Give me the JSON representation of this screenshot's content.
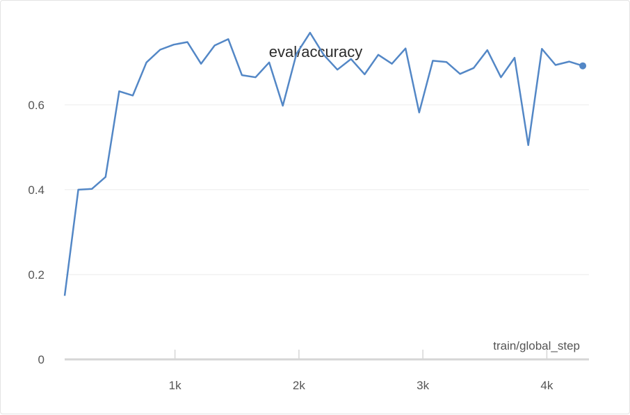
{
  "chart_data": {
    "type": "line",
    "title": "eval/accuracy",
    "xlabel": "train/global_step",
    "ylabel": "",
    "xlim": [
      110,
      4340
    ],
    "ylim": [
      0,
      0.78
    ],
    "xticks": [
      1000,
      2000,
      3000,
      4000
    ],
    "xtick_labels": [
      "1k",
      "2k",
      "3k",
      "4k"
    ],
    "yticks": [
      0,
      0.2,
      0.4,
      0.6
    ],
    "ytick_labels": [
      "0",
      "0.2",
      "0.4",
      "0.6"
    ],
    "grid": true,
    "color": "#5387c6",
    "series": [
      {
        "x": [
          110,
          220,
          330,
          440,
          550,
          660,
          770,
          880,
          990,
          1100,
          1210,
          1320,
          1430,
          1540,
          1650,
          1760,
          1870,
          1980,
          2090,
          2200,
          2310,
          2420,
          2530,
          2640,
          2750,
          2860,
          2970,
          3080,
          3190,
          3300,
          3410,
          3520,
          3630,
          3740,
          3850,
          3960,
          4070,
          4180,
          4290
        ],
        "y": [
          0.15,
          0.4,
          0.402,
          0.43,
          0.632,
          0.622,
          0.7,
          0.73,
          0.742,
          0.748,
          0.697,
          0.74,
          0.755,
          0.67,
          0.665,
          0.7,
          0.598,
          0.72,
          0.77,
          0.718,
          0.683,
          0.708,
          0.672,
          0.718,
          0.697,
          0.733,
          0.582,
          0.704,
          0.701,
          0.673,
          0.687,
          0.729,
          0.665,
          0.711,
          0.505,
          0.732,
          0.694,
          0.702,
          0.692
        ],
        "last_point_marker": true
      }
    ]
  }
}
